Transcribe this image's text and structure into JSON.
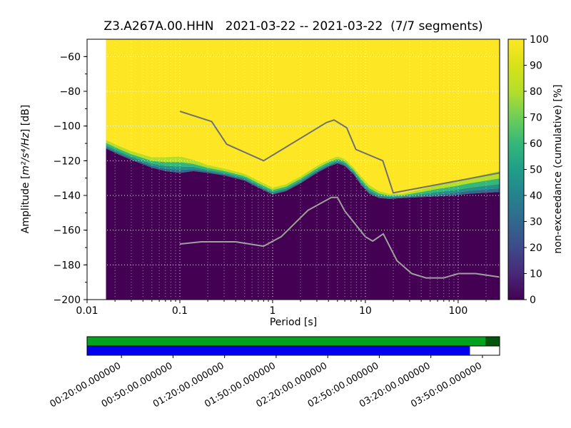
{
  "title": "Z3.A267A.00.HHN   2021-03-22 -- 2021-03-22  (7/7 segments)",
  "axes": {
    "xlabel": "Period [s]",
    "ylabel": {
      "pre": "Amplitude [",
      "math": "m²/s⁴/Hz",
      "post": "] [dB]"
    },
    "x_ticks": {
      "values": [
        0.01,
        0.1,
        1,
        10,
        100
      ],
      "labels": [
        "0.01",
        "0.1",
        "1",
        "10",
        "100"
      ]
    },
    "y_ticks": {
      "values": [
        -200,
        -180,
        -160,
        -140,
        -120,
        -100,
        -80,
        -60
      ],
      "labels": [
        "−200",
        "−180",
        "−160",
        "−140",
        "−120",
        "−100",
        "−80",
        "−60"
      ]
    }
  },
  "colorbar": {
    "label": "non-exceedance (cumulative) [%]",
    "ticks": [
      0,
      10,
      20,
      30,
      40,
      50,
      60,
      70,
      80,
      90,
      100
    ],
    "tick_labels": [
      "0",
      "10",
      "20",
      "30",
      "40",
      "50",
      "60",
      "70",
      "80",
      "90",
      "100"
    ]
  },
  "chart_data": {
    "type": "heatmap",
    "title": "Z3.A267A.00.HHN   2021-03-22 -- 2021-03-22  (7/7 segments)",
    "xlabel": "Period [s]",
    "ylabel": "Amplitude [m²/s⁴/Hz] [dB]",
    "colorbar_label": "non-exceedance (cumulative) [%]",
    "xscale": "log",
    "xlim": [
      0.01,
      280
    ],
    "ylim": [
      -200,
      -50
    ],
    "data_period_range": [
      0.016,
      280
    ],
    "grid": true,
    "colors": {
      "max": "#fde725",
      "min": "#440154",
      "background": "#ffffff",
      "grid": "#ffffff",
      "noise_model_high": "#707070",
      "noise_model_low": "#a0a0a0"
    },
    "band_colors": [
      "#b5de2b",
      "#35b779",
      "#21918c",
      "#31688e"
    ],
    "colormap_stops": [
      [
        0,
        "#440154"
      ],
      [
        0.1,
        "#482878"
      ],
      [
        0.2,
        "#3e4a89"
      ],
      [
        0.3,
        "#31688e"
      ],
      [
        0.4,
        "#26828e"
      ],
      [
        0.5,
        "#1f9e89"
      ],
      [
        0.6,
        "#35b779"
      ],
      [
        0.7,
        "#6ece58"
      ],
      [
        0.8,
        "#b5de2b"
      ],
      [
        0.9,
        "#d8e219"
      ],
      [
        1,
        "#fde725"
      ]
    ],
    "distribution_envelope": {
      "comment": "upper_db = level below which color leaves yellow (≈90% non-exceedance), lower_db = top of dark 0% region",
      "periods": [
        0.016,
        0.022,
        0.03,
        0.04,
        0.05,
        0.07,
        0.1,
        0.14,
        0.2,
        0.3,
        0.5,
        0.7,
        1,
        1.4,
        2,
        3,
        4,
        5,
        6,
        7.5,
        9,
        11,
        14,
        18,
        25,
        40,
        60,
        90,
        130,
        190,
        280
      ],
      "upper_db": [
        -108,
        -111.5,
        -114.5,
        -116.5,
        -118,
        -118,
        -117.5,
        -119.5,
        -122.5,
        -124.5,
        -127.5,
        -131.5,
        -135.5,
        -133.5,
        -129,
        -123,
        -119.5,
        -117.5,
        -119,
        -124,
        -129,
        -134,
        -137.5,
        -139,
        -139,
        -136.5,
        -134,
        -132,
        -130,
        -128,
        -126
      ],
      "lower_db": [
        -113,
        -116.5,
        -119.5,
        -122,
        -124,
        -126,
        -127,
        -126,
        -127,
        -128.5,
        -131.5,
        -135.5,
        -139.5,
        -137.5,
        -133,
        -127,
        -123.5,
        -121.5,
        -123,
        -128,
        -134,
        -139,
        -141.5,
        -142,
        -141.5,
        -141,
        -140.5,
        -140,
        -139,
        -138.5,
        -138
      ]
    },
    "noise_models": {
      "high": {
        "periods": [
          0.1,
          0.22,
          0.32,
          0.8,
          3.8,
          4.6,
          6.3,
          7.9,
          15.4,
          20,
          280
        ],
        "db": [
          -91.5,
          -97.4,
          -110.5,
          -120,
          -98,
          -96.5,
          -101,
          -113.5,
          -120,
          -138.5,
          -127
        ]
      },
      "low": {
        "periods": [
          0.1,
          0.17,
          0.4,
          0.8,
          1.24,
          2.4,
          4.3,
          5,
          6,
          10,
          12,
          15.6,
          21.9,
          31.6,
          45,
          70,
          101,
          154,
          280
        ],
        "db": [
          -168,
          -166.7,
          -166.7,
          -169.2,
          -163.7,
          -148.6,
          -141.1,
          -141.1,
          -149,
          -163.8,
          -166.3,
          -162.1,
          -177.6,
          -185,
          -187.5,
          -187.5,
          -185,
          -185,
          -187
        ]
      }
    }
  },
  "coverage": {
    "time_axis": {
      "start_min": 0,
      "end_min": 240,
      "label_times_min": [
        20,
        50,
        80,
        110,
        140,
        170,
        200,
        230
      ]
    },
    "time_labels": [
      "00:20:00.000000",
      "00:50:00.000000",
      "01:20:00.000000",
      "01:50:00.000000",
      "02:20:00.000000",
      "02:50:00.000000",
      "03:20:00.000000",
      "03:50:00.000000"
    ],
    "bars": [
      {
        "name": "data-availability-bar",
        "background": "#ffffff",
        "segments": [
          {
            "start": 0,
            "end": 1,
            "color": "#00a31c"
          },
          {
            "start": 0.966,
            "end": 1,
            "color": "#00570b"
          }
        ]
      },
      {
        "name": "psd-segments-bar",
        "background": "#ffffff",
        "segments": [
          {
            "start": 0,
            "end": 0.928,
            "color": "#0000f0"
          }
        ]
      }
    ]
  }
}
